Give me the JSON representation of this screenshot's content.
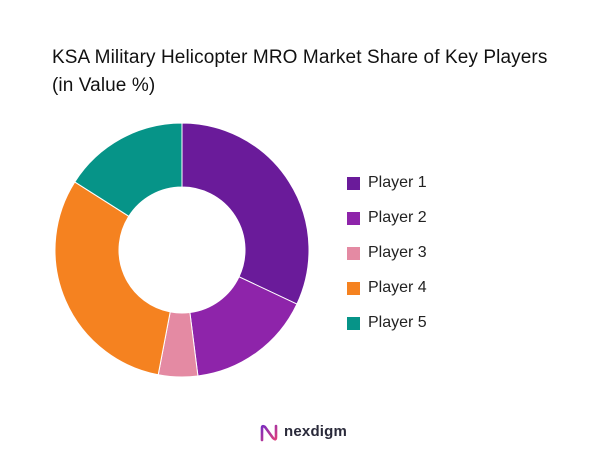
{
  "chart_data": {
    "type": "pie",
    "title": "KSA Military Helicopter MRO Market Share of Key Players (in Value %)",
    "donut": true,
    "legend_position": "right",
    "categories": [
      "Player 1",
      "Player 2",
      "Player 3",
      "Player 4",
      "Player 5"
    ],
    "values": [
      32,
      16,
      5,
      31,
      16
    ],
    "colors": [
      "#6a1b9a",
      "#8e24aa",
      "#e48aa3",
      "#f58220",
      "#069488"
    ]
  },
  "brand": {
    "name": "nexdigm",
    "icon": "nexdigm-logo-icon"
  }
}
